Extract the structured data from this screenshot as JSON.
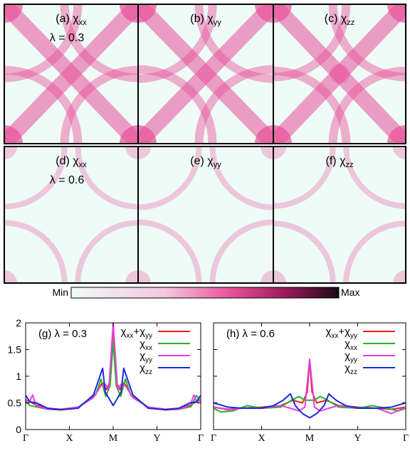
{
  "colors": {
    "heat_min": "#eefbf7",
    "heat_mid": "#e8509a",
    "heat_max": "#1a0a12",
    "chi_xx_plus_yy": "#e8201a",
    "chi_xx": "#2ab02a",
    "chi_yy": "#e83ee0",
    "chi_zz": "#1a2adf"
  },
  "heatmap_panels": [
    {
      "label": "(a) χ",
      "sub": "xx",
      "note": "λ = 0.3",
      "component": "xx",
      "lambda": 0.3
    },
    {
      "label": "(b) χ",
      "sub": "yy",
      "note": "",
      "component": "yy",
      "lambda": 0.3
    },
    {
      "label": "(c) χ",
      "sub": "zz",
      "note": "",
      "component": "zz",
      "lambda": 0.3
    },
    {
      "label": "(d) χ",
      "sub": "xx",
      "note": "λ = 0.6",
      "component": "xx",
      "lambda": 0.6
    },
    {
      "label": "(e) χ",
      "sub": "yy",
      "note": "",
      "component": "yy",
      "lambda": 0.6
    },
    {
      "label": "(f)  χ",
      "sub": "zz",
      "note": "",
      "component": "zz",
      "lambda": 0.6
    }
  ],
  "colorbar": {
    "min_label": "Min",
    "max_label": "Max"
  },
  "chart_data": [
    {
      "type": "line",
      "title": "(g) λ = 0.3",
      "x_ticks": [
        "Γ",
        "X",
        "M",
        "Y",
        "Γ"
      ],
      "y_ticks": [
        "0",
        "0.5",
        "1",
        "1.5",
        "2"
      ],
      "ylim": [
        0,
        2
      ],
      "legend": [
        {
          "main": "χ",
          "sub": "xx",
          "plus": "+χ",
          "sub2": "yy",
          "color": "#e8201a"
        },
        {
          "main": "χ",
          "sub": "xx",
          "color": "#2ab02a"
        },
        {
          "main": "χ",
          "sub": "yy",
          "color": "#e83ee0"
        },
        {
          "main": "χ",
          "sub": "zz",
          "color": "#1a2adf"
        }
      ],
      "series": [
        {
          "name": "χxx+χyy",
          "color": "#e8201a",
          "points": [
            [
              0,
              0.55
            ],
            [
              0.1,
              0.52
            ],
            [
              0.22,
              0.47
            ],
            [
              0.5,
              0.4
            ],
            [
              0.8,
              0.38
            ],
            [
              1.2,
              0.42
            ],
            [
              1.55,
              0.6
            ],
            [
              1.75,
              0.88
            ],
            [
              1.85,
              0.75
            ],
            [
              1.93,
              0.9
            ],
            [
              2,
              1.95
            ],
            [
              2.07,
              0.9
            ],
            [
              2.15,
              0.75
            ],
            [
              2.25,
              0.88
            ],
            [
              2.45,
              0.6
            ],
            [
              2.8,
              0.42
            ],
            [
              3.2,
              0.38
            ],
            [
              3.5,
              0.4
            ],
            [
              3.78,
              0.47
            ],
            [
              3.9,
              0.52
            ],
            [
              4,
              0.55
            ]
          ]
        },
        {
          "name": "χxx",
          "color": "#2ab02a",
          "points": [
            [
              0,
              0.52
            ],
            [
              0.1,
              0.45
            ],
            [
              0.22,
              0.43
            ],
            [
              0.5,
              0.38
            ],
            [
              0.8,
              0.37
            ],
            [
              1.2,
              0.42
            ],
            [
              1.6,
              0.65
            ],
            [
              1.72,
              0.95
            ],
            [
              1.83,
              0.62
            ],
            [
              1.93,
              0.82
            ],
            [
              2,
              1.65
            ],
            [
              2.07,
              0.82
            ],
            [
              2.17,
              0.62
            ],
            [
              2.28,
              0.95
            ],
            [
              2.4,
              0.65
            ],
            [
              2.8,
              0.42
            ],
            [
              3.2,
              0.37
            ],
            [
              3.5,
              0.38
            ],
            [
              3.78,
              0.43
            ],
            [
              3.9,
              0.64
            ],
            [
              4,
              0.52
            ]
          ]
        },
        {
          "name": "χyy",
          "color": "#e83ee0",
          "points": [
            [
              0,
              0.57
            ],
            [
              0.08,
              0.5
            ],
            [
              0.16,
              0.65
            ],
            [
              0.24,
              0.45
            ],
            [
              0.5,
              0.38
            ],
            [
              0.8,
              0.37
            ],
            [
              1.2,
              0.42
            ],
            [
              1.55,
              0.6
            ],
            [
              1.72,
              0.82
            ],
            [
              1.82,
              0.85
            ],
            [
              1.9,
              0.75
            ],
            [
              2,
              2.0
            ],
            [
              2.1,
              0.75
            ],
            [
              2.18,
              0.85
            ],
            [
              2.28,
              0.82
            ],
            [
              2.45,
              0.6
            ],
            [
              2.8,
              0.42
            ],
            [
              3.2,
              0.37
            ],
            [
              3.5,
              0.38
            ],
            [
              3.76,
              0.45
            ],
            [
              3.84,
              0.65
            ],
            [
              3.92,
              0.5
            ],
            [
              4,
              0.57
            ]
          ]
        },
        {
          "name": "χzz",
          "color": "#1a2adf",
          "points": [
            [
              0,
              0.64
            ],
            [
              0.1,
              0.52
            ],
            [
              0.25,
              0.5
            ],
            [
              0.5,
              0.4
            ],
            [
              0.8,
              0.37
            ],
            [
              1.2,
              0.4
            ],
            [
              1.55,
              0.65
            ],
            [
              1.76,
              1.15
            ],
            [
              1.82,
              0.7
            ],
            [
              2,
              0.45
            ],
            [
              2.18,
              0.7
            ],
            [
              2.24,
              1.15
            ],
            [
              2.45,
              0.65
            ],
            [
              2.8,
              0.4
            ],
            [
              3.2,
              0.37
            ],
            [
              3.5,
              0.4
            ],
            [
              3.75,
              0.5
            ],
            [
              3.9,
              0.52
            ],
            [
              4,
              0.64
            ]
          ]
        }
      ]
    },
    {
      "type": "line",
      "title": "(h) λ = 0.6",
      "x_ticks": [
        "Γ",
        "X",
        "M",
        "Y",
        "Γ"
      ],
      "y_ticks": [
        "0",
        "0.5",
        "1",
        "1.5",
        "2"
      ],
      "ylim": [
        0,
        2
      ],
      "legend": [
        {
          "main": "χ",
          "sub": "xx",
          "plus": "+χ",
          "sub2": "yy",
          "color": "#e8201a"
        },
        {
          "main": "χ",
          "sub": "xx",
          "color": "#2ab02a"
        },
        {
          "main": "χ",
          "sub": "yy",
          "color": "#e83ee0"
        },
        {
          "main": "χ",
          "sub": "zz",
          "color": "#1a2adf"
        }
      ],
      "series": [
        {
          "name": "χxx+χyy",
          "color": "#e8201a",
          "points": [
            [
              0,
              0.42
            ],
            [
              0.3,
              0.38
            ],
            [
              0.6,
              0.4
            ],
            [
              1.0,
              0.42
            ],
            [
              1.4,
              0.45
            ],
            [
              1.65,
              0.55
            ],
            [
              1.85,
              0.5
            ],
            [
              1.95,
              0.7
            ],
            [
              2,
              1.3
            ],
            [
              2.05,
              0.7
            ],
            [
              2.15,
              0.5
            ],
            [
              2.35,
              0.55
            ],
            [
              2.6,
              0.45
            ],
            [
              3.0,
              0.42
            ],
            [
              3.4,
              0.4
            ],
            [
              3.7,
              0.38
            ],
            [
              4,
              0.42
            ]
          ]
        },
        {
          "name": "χxx",
          "color": "#2ab02a",
          "points": [
            [
              0,
              0.4
            ],
            [
              0.15,
              0.33
            ],
            [
              0.4,
              0.35
            ],
            [
              0.7,
              0.45
            ],
            [
              1.0,
              0.4
            ],
            [
              1.4,
              0.42
            ],
            [
              1.62,
              0.55
            ],
            [
              1.78,
              0.62
            ],
            [
              1.9,
              0.55
            ],
            [
              2,
              0.55
            ],
            [
              2.1,
              0.55
            ],
            [
              2.22,
              0.62
            ],
            [
              2.38,
              0.55
            ],
            [
              2.6,
              0.42
            ],
            [
              3.0,
              0.4
            ],
            [
              3.3,
              0.45
            ],
            [
              3.6,
              0.4
            ],
            [
              3.85,
              0.35
            ],
            [
              4,
              0.4
            ]
          ]
        },
        {
          "name": "χyy",
          "color": "#e83ee0",
          "points": [
            [
              0,
              0.42
            ],
            [
              0.3,
              0.37
            ],
            [
              0.6,
              0.4
            ],
            [
              1.0,
              0.4
            ],
            [
              1.4,
              0.45
            ],
            [
              1.6,
              0.4
            ],
            [
              1.78,
              0.35
            ],
            [
              1.9,
              0.42
            ],
            [
              2,
              1.32
            ],
            [
              2.1,
              0.42
            ],
            [
              2.22,
              0.35
            ],
            [
              2.4,
              0.4
            ],
            [
              2.6,
              0.45
            ],
            [
              3.0,
              0.4
            ],
            [
              3.4,
              0.4
            ],
            [
              3.7,
              0.3
            ],
            [
              4,
              0.42
            ]
          ]
        },
        {
          "name": "χzz",
          "color": "#1a2adf",
          "points": [
            [
              0,
              0.5
            ],
            [
              0.3,
              0.42
            ],
            [
              0.6,
              0.4
            ],
            [
              1.0,
              0.4
            ],
            [
              1.25,
              0.45
            ],
            [
              1.45,
              0.55
            ],
            [
              1.6,
              0.67
            ],
            [
              1.7,
              0.45
            ],
            [
              1.85,
              0.3
            ],
            [
              2,
              0.22
            ],
            [
              2.15,
              0.3
            ],
            [
              2.3,
              0.45
            ],
            [
              2.4,
              0.67
            ],
            [
              2.55,
              0.55
            ],
            [
              2.75,
              0.45
            ],
            [
              3.0,
              0.4
            ],
            [
              3.4,
              0.4
            ],
            [
              3.7,
              0.42
            ],
            [
              4,
              0.5
            ]
          ]
        }
      ]
    }
  ]
}
